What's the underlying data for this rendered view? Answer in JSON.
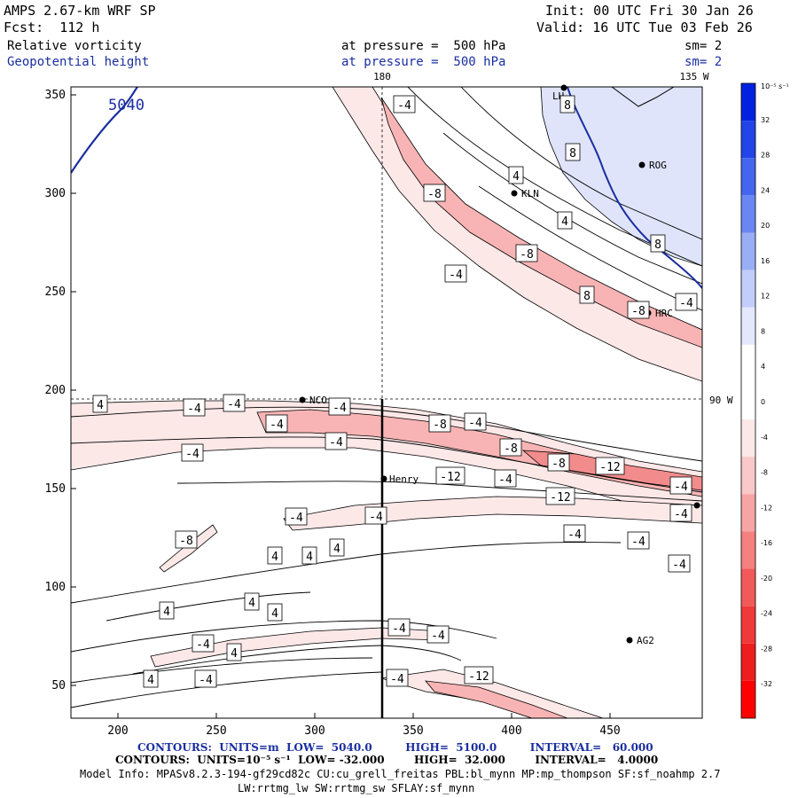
{
  "header": {
    "model": "AMPS 2.67-km WRF SP",
    "forecast": "Fcst:  112 h",
    "init": "Init: 00 UTC Fri 30 Jan 26",
    "valid": "Valid: 16 UTC Tue 03 Feb 26",
    "field1": {
      "name": "Relative vorticity",
      "level": "at pressure =  500 hPa",
      "smooth": "sm= 2"
    },
    "field2": {
      "name": "Geopotential height",
      "level": "at pressure =  500 hPa",
      "smooth": "sm= 2"
    }
  },
  "map": {
    "x_ticks": [
      "200",
      "250",
      "300",
      "350",
      "400",
      "450"
    ],
    "y_ticks": [
      "350",
      "300",
      "250",
      "200",
      "150",
      "100",
      "50"
    ],
    "lon_labels": {
      "top_180": "180",
      "top_135": "135 W",
      "right_90": "90 W"
    },
    "height_label": "5040",
    "stations": [
      {
        "name": "KLN"
      },
      {
        "name": "ROG"
      },
      {
        "name": "HRC"
      },
      {
        "name": "NCO"
      },
      {
        "name": "Henry"
      },
      {
        "name": "AG2"
      },
      {
        "name": "LH"
      }
    ],
    "contour_labels": [
      "-4",
      "8",
      "8",
      "4",
      "-8",
      "8",
      "4",
      "-8",
      "-4",
      "8",
      "-8",
      "-4",
      "4",
      "-4",
      "-4",
      "-4",
      "-4",
      "-8",
      "-4",
      "-8",
      "-4",
      "-4",
      "-8",
      "-12",
      "-12",
      "-4",
      "-4",
      "-12",
      "-4",
      "-4",
      "-4",
      "-4",
      "-4",
      "-8",
      "-4",
      "4",
      "4",
      "4",
      "4",
      "4",
      "4",
      "-4",
      "-4",
      "-4",
      "4",
      "4",
      "-4",
      "-4",
      "-12"
    ]
  },
  "colorbar": {
    "unit_label": "10⁻⁵ s⁻¹",
    "levels": [
      "32",
      "28",
      "24",
      "20",
      "16",
      "12",
      "8",
      "4",
      "0",
      "-4",
      "-8",
      "-12",
      "-16",
      "-20",
      "-24",
      "-28",
      "-32"
    ],
    "colors_top_to_bottom": [
      "#0022e0",
      "#2244e8",
      "#4466ee",
      "#6a86f2",
      "#9aaef6",
      "#c2cdfa",
      "#e4e8fd",
      "#ffffff",
      "#ffffff",
      "#fde8e8",
      "#fac8c8",
      "#f7a4a4",
      "#f48080",
      "#f25a5a",
      "#f03a3a",
      "#ee1e1e",
      "#ff0000"
    ]
  },
  "footer": {
    "contours1": "CONTOURS:  UNITS=m  LOW=  5040.0         HIGH=  5100.0         INTERVAL=   60.000",
    "contours2": "CONTOURS:  UNITS=10⁻⁵ s⁻¹  LOW= -32.000        HIGH=  32.000        INTERVAL=   4.0000",
    "model_info": "Model Info: MPASv8.2.3-194-gf29cd82c CU:cu_grell_freitas PBL:bl_mynn MP:mp_thompson SF:sf_noahmp 2.7",
    "model_info2": "LW:rrtmg_lw SW:rrtmg_sw SFLAY:sf_mynn"
  }
}
